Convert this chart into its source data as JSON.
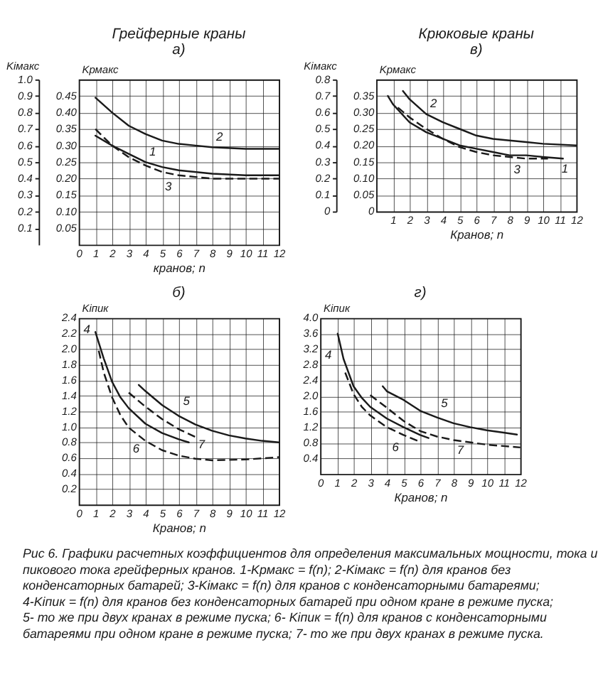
{
  "chart_data": [
    {
      "type": "line",
      "title": "Грейферные краны",
      "subtitle": "а)",
      "xlabel": "кранов; n",
      "ylabel": "Kiмакс",
      "y2label": "Kрмакс",
      "xlim": [
        0,
        12
      ],
      "xticks": [
        0,
        1,
        2,
        3,
        4,
        5,
        6,
        7,
        8,
        9,
        10,
        11,
        12
      ],
      "ylim": [
        0,
        1
      ],
      "yticks": [
        0.1,
        0.2,
        0.3,
        0.4,
        0.5,
        0.6,
        0.7,
        0.8,
        0.9,
        {
          "value": 1,
          "label": "1.0"
        }
      ],
      "y2lim": [
        0,
        0.5
      ],
      "y2ticks": [
        0.05,
        {
          "value": 0.1,
          "label": "0.10"
        },
        0.15,
        {
          "value": 0.2,
          "label": "0.20"
        },
        0.25,
        {
          "value": 0.3,
          "label": "0.30"
        },
        0.35,
        {
          "value": 0.4,
          "label": "0.40"
        },
        0.45
      ],
      "grid": true,
      "series": [
        {
          "name": "2",
          "color": "#1a1a1a",
          "line_style": "solid",
          "x": [
            1,
            2,
            3,
            4,
            5,
            6,
            7,
            8,
            10,
            12
          ],
          "values": [
            0.89,
            0.8,
            0.72,
            0.67,
            0.63,
            0.61,
            0.6,
            0.59,
            0.58,
            0.58
          ]
        },
        {
          "name": "1",
          "color": "#1a1a1a",
          "line_style": "solid",
          "axis": "y2",
          "x": [
            1,
            2,
            3,
            4,
            5,
            6,
            8,
            10,
            12
          ],
          "values": [
            0.33,
            0.3,
            0.275,
            0.25,
            0.235,
            0.225,
            0.215,
            0.21,
            0.21
          ]
        },
        {
          "name": "3",
          "color": "#1a1a1a",
          "line_style": "dashed",
          "x": [
            1,
            2,
            3,
            4,
            5,
            6,
            7,
            8,
            10,
            12
          ],
          "values": [
            0.7,
            0.6,
            0.53,
            0.48,
            0.44,
            0.42,
            0.41,
            0.4,
            0.4,
            0.4
          ]
        }
      ]
    },
    {
      "type": "line",
      "title": "Крюковые краны",
      "subtitle": "в)",
      "xlabel": "Кранов; n",
      "ylabel": "Kiмакс",
      "y2label": "Kрмакс",
      "xlim": [
        0,
        12
      ],
      "xticks": [
        1,
        2,
        3,
        4,
        5,
        6,
        7,
        8,
        9,
        10,
        11,
        12
      ],
      "ylim": [
        0,
        0.8
      ],
      "yticks": [
        0,
        0.1,
        0.2,
        0.3,
        0.4,
        0.5,
        0.6,
        0.7,
        0.8
      ],
      "y2lim": [
        0,
        0.4
      ],
      "y2ticks": [
        0,
        0.05,
        {
          "value": 0.1,
          "label": "0.10"
        },
        0.15,
        {
          "value": 0.2,
          "label": "0.20"
        },
        0.25,
        {
          "value": 0.3,
          "label": "0.30"
        },
        0.35
      ],
      "grid": true,
      "series": [
        {
          "name": "2",
          "color": "#1a1a1a",
          "line_style": "solid",
          "x": [
            1.6,
            2,
            3,
            4,
            5,
            6,
            7,
            8,
            9,
            10,
            12
          ],
          "values": [
            0.73,
            0.68,
            0.59,
            0.54,
            0.5,
            0.46,
            0.44,
            0.43,
            0.42,
            0.41,
            0.4
          ]
        },
        {
          "name": "1",
          "color": "#1a1a1a",
          "line_style": "solid",
          "axis": "y2",
          "x": [
            0.7,
            1,
            2,
            3,
            4,
            5,
            6,
            7,
            8,
            9,
            10,
            11.2
          ],
          "values": [
            0.35,
            0.325,
            0.27,
            0.24,
            0.22,
            0.2,
            0.19,
            0.18,
            0.17,
            0.17,
            0.165,
            0.16
          ]
        },
        {
          "name": "3",
          "color": "#1a1a1a",
          "line_style": "dashed",
          "x": [
            1.3,
            2,
            3,
            4,
            5,
            6,
            7,
            8,
            9,
            10.3
          ],
          "values": [
            0.63,
            0.57,
            0.5,
            0.44,
            0.39,
            0.36,
            0.34,
            0.33,
            0.32,
            0.32
          ]
        }
      ]
    },
    {
      "type": "line",
      "title": "б)",
      "xlabel": "Кранов; n",
      "ylabel": "Kiпик",
      "xlim": [
        0,
        12
      ],
      "xticks": [
        0,
        1,
        2,
        3,
        4,
        5,
        6,
        7,
        8,
        9,
        10,
        11,
        12
      ],
      "ylim": [
        0,
        2.4
      ],
      "yticks": [
        0.2,
        0.4,
        0.6,
        0.8,
        {
          "value": 1,
          "label": "1.0"
        },
        1.2,
        1.4,
        1.6,
        1.8,
        {
          "value": 2,
          "label": "2.0"
        },
        2.2,
        2.4
      ],
      "grid": true,
      "series": [
        {
          "name": "4",
          "color": "#1a1a1a",
          "line_style": "solid",
          "x": [
            1,
            1.5,
            2,
            2.5,
            3,
            4,
            5,
            6,
            6.6
          ],
          "values": [
            2.22,
            1.88,
            1.58,
            1.38,
            1.24,
            1.04,
            0.92,
            0.84,
            0.8
          ]
        },
        {
          "name": "5",
          "color": "#1a1a1a",
          "line_style": "solid",
          "x": [
            3.6,
            4,
            5,
            6,
            7,
            8,
            9,
            10,
            11,
            12
          ],
          "values": [
            1.54,
            1.46,
            1.28,
            1.14,
            1.03,
            0.95,
            0.89,
            0.85,
            0.82,
            0.8
          ]
        },
        {
          "name": "6",
          "color": "#1a1a1a",
          "line_style": "dashed",
          "x": [
            1.2,
            1.5,
            2,
            2.5,
            3,
            4,
            5,
            6,
            7,
            8,
            10,
            12
          ],
          "values": [
            1.98,
            1.7,
            1.38,
            1.15,
            0.99,
            0.82,
            0.7,
            0.63,
            0.59,
            0.57,
            0.58,
            0.61
          ]
        },
        {
          "name": "7",
          "color": "#1a1a1a",
          "line_style": "dashed",
          "x": [
            3,
            4,
            5,
            6,
            7
          ],
          "values": [
            1.44,
            1.26,
            1.1,
            0.97,
            0.87
          ]
        }
      ]
    },
    {
      "type": "line",
      "title": "г)",
      "xlabel": "Кранов; n",
      "ylabel": "Kiпик",
      "xlim": [
        0,
        12
      ],
      "xticks": [
        0,
        1,
        2,
        3,
        4,
        5,
        6,
        7,
        8,
        9,
        10,
        11,
        12
      ],
      "ylim": [
        0,
        4
      ],
      "yticks": [
        0.4,
        0.8,
        1.2,
        1.6,
        {
          "value": 2,
          "label": "2.0"
        },
        2.4,
        2.8,
        3.2,
        3.6,
        {
          "value": 4,
          "label": "4.0"
        }
      ],
      "grid": true,
      "series": [
        {
          "name": "4",
          "color": "#1a1a1a",
          "line_style": "solid",
          "x": [
            1.05,
            1.4,
            2,
            2.5,
            3,
            4,
            5,
            6,
            6.5
          ],
          "values": [
            3.6,
            2.95,
            2.25,
            1.95,
            1.72,
            1.42,
            1.2,
            1.0,
            0.92
          ]
        },
        {
          "name": "5",
          "color": "#1a1a1a",
          "line_style": "solid",
          "x": [
            3.75,
            4,
            5,
            6,
            7,
            8,
            9,
            10,
            11,
            11.8
          ],
          "values": [
            2.25,
            2.12,
            1.9,
            1.62,
            1.45,
            1.3,
            1.2,
            1.12,
            1.06,
            1.01
          ]
        },
        {
          "name": "6",
          "color": "#1a1a1a",
          "line_style": "dashed",
          "x": [
            1.5,
            2,
            2.5,
            3,
            4,
            5,
            6
          ],
          "values": [
            2.6,
            2.05,
            1.72,
            1.5,
            1.2,
            1.0,
            0.82
          ]
        },
        {
          "name": "7",
          "color": "#1a1a1a",
          "line_style": "dashed",
          "x": [
            3,
            4,
            5,
            6,
            7,
            8,
            10,
            12
          ],
          "values": [
            2.02,
            1.7,
            1.36,
            1.1,
            0.96,
            0.87,
            0.75,
            0.68
          ]
        }
      ],
      "annotations": [
        "Рис 6. Графики расчетных коэффициентов для определения максимальных мощности, тока и пикового тока грейферных кранов. 1-Kрмакс = f(n); 2-Kiмакс = f(n) для кранов без конденсаторных батарей; 3-Kiмакс = f(n) для кранов с конденсаторными батареями; 4-Kiпик = f(n) для кранов без конденсаторных батарей при одном кране в режиме пуска; 5- то же при двух кранах в режиме пуска; 6- Kiпик = f(n) для кранов с конденсаторными батареями при одном кране в режиме пуска; 7- то же при двух кранах в режиме пуска."
      ]
    }
  ]
}
